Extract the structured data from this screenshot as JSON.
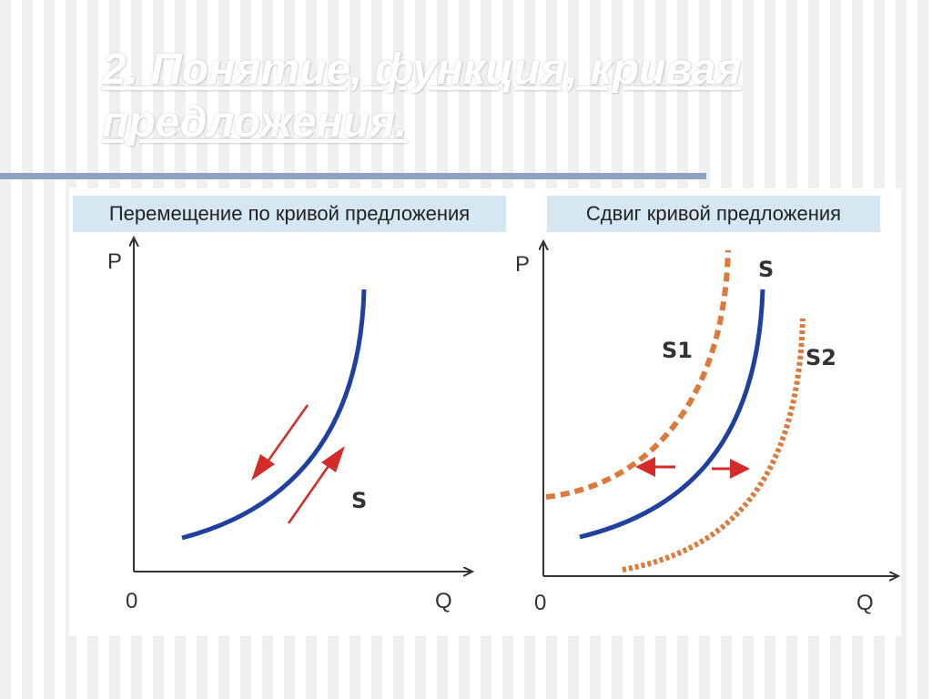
{
  "slide": {
    "title": "2. Понятие, функция, кривая предложения."
  },
  "left_panel": {
    "caption": "Перемещение по кривой предложения",
    "y_axis": "P",
    "x_axis": "Q",
    "origin": "0",
    "curve_label": "S"
  },
  "right_panel": {
    "caption": "Сдвиг кривой предложения",
    "y_axis": "P",
    "x_axis": "Q",
    "origin": "0",
    "curve_label": "S",
    "left_shift_label": "S1",
    "right_shift_label": "S2"
  },
  "colors": {
    "curve": "#2040a0",
    "arrow": "#d42a2a",
    "shift_curve": "#dd7a3a",
    "axis": "#333333",
    "caption_bg": "#d4e7f2",
    "title_rule": "#8ea3c4"
  }
}
